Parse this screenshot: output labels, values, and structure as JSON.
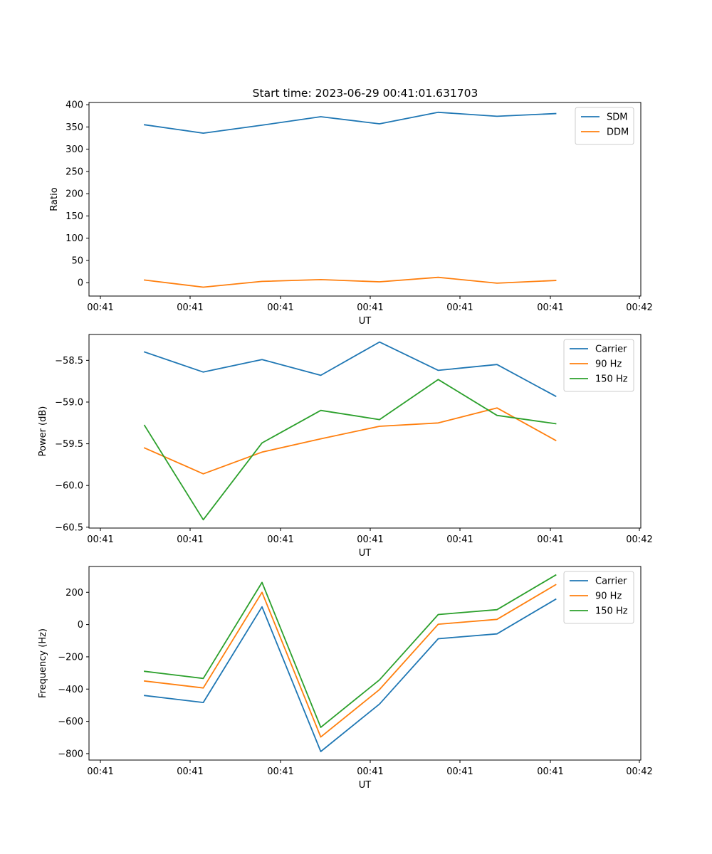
{
  "figure": {
    "title": "Start time: 2023-06-29 00:41:01.631703"
  },
  "chart_data": [
    {
      "type": "line",
      "ylabel": "Ratio",
      "xlabel": "UT",
      "x_tick_labels": [
        "00:41",
        "00:41",
        "00:41",
        "00:41",
        "00:41",
        "00:41",
        "00:42"
      ],
      "xlim": [
        0,
        10
      ],
      "ylim": [
        -30,
        405
      ],
      "y_ticks": [
        0,
        50,
        100,
        150,
        200,
        250,
        300,
        350,
        400
      ],
      "legend_position": "top-right",
      "x": [
        1,
        2,
        3,
        4,
        5,
        6,
        7,
        8
      ],
      "series": [
        {
          "name": "SDM",
          "color": "#1f77b4",
          "values": [
            355,
            336,
            354,
            373,
            357,
            383,
            374,
            380
          ]
        },
        {
          "name": "DDM",
          "color": "#ff7f0e",
          "values": [
            6,
            -10,
            3,
            7,
            2,
            12,
            -1,
            5
          ]
        }
      ]
    },
    {
      "type": "line",
      "ylabel": "Power (dB)",
      "xlabel": "UT",
      "x_tick_labels": [
        "00:41",
        "00:41",
        "00:41",
        "00:41",
        "00:41",
        "00:41",
        "00:42"
      ],
      "xlim": [
        0,
        10
      ],
      "ylim": [
        -60.51,
        -58.19
      ],
      "y_ticks": [
        -60.5,
        -60.0,
        -59.5,
        -59.0,
        -58.5
      ],
      "y_tick_labels": [
        "−60.5",
        "−60.0",
        "−59.5",
        "−59.0",
        "−58.5"
      ],
      "legend_position": "top-right",
      "x": [
        1,
        2,
        3,
        4,
        5,
        6,
        7,
        8
      ],
      "series": [
        {
          "name": "Carrier",
          "color": "#1f77b4",
          "values": [
            -58.4,
            -58.64,
            -58.49,
            -58.68,
            -58.28,
            -58.62,
            -58.55,
            -58.93
          ]
        },
        {
          "name": "90 Hz",
          "color": "#ff7f0e",
          "values": [
            -59.55,
            -59.86,
            -59.6,
            -59.44,
            -59.29,
            -59.25,
            -59.07,
            -59.46
          ]
        },
        {
          "name": "150 Hz",
          "color": "#2ca02c",
          "values": [
            -59.28,
            -60.41,
            -59.49,
            -59.1,
            -59.21,
            -58.73,
            -59.16,
            -59.26
          ]
        }
      ]
    },
    {
      "type": "line",
      "ylabel": "Frequency (Hz)",
      "xlabel": "UT",
      "x_tick_labels": [
        "00:41",
        "00:41",
        "00:41",
        "00:41",
        "00:41",
        "00:41",
        "00:42"
      ],
      "xlim": [
        0,
        10
      ],
      "ylim": [
        -840,
        360
      ],
      "y_ticks": [
        -800,
        -600,
        -400,
        -200,
        0,
        200
      ],
      "y_tick_labels": [
        "−800",
        "−600",
        "−400",
        "−200",
        "0",
        "200"
      ],
      "legend_position": "top-right",
      "x": [
        1,
        2,
        3,
        4,
        5,
        6,
        7,
        8
      ],
      "series": [
        {
          "name": "Carrier",
          "color": "#1f77b4",
          "values": [
            -440,
            -483,
            110,
            -787,
            -493,
            -88,
            -58,
            157
          ]
        },
        {
          "name": "90 Hz",
          "color": "#ff7f0e",
          "values": [
            -350,
            -393,
            200,
            -697,
            -403,
            2,
            32,
            247
          ]
        },
        {
          "name": "150 Hz",
          "color": "#2ca02c",
          "values": [
            -290,
            -334,
            261,
            -637,
            -343,
            62,
            92,
            307
          ]
        }
      ]
    }
  ]
}
